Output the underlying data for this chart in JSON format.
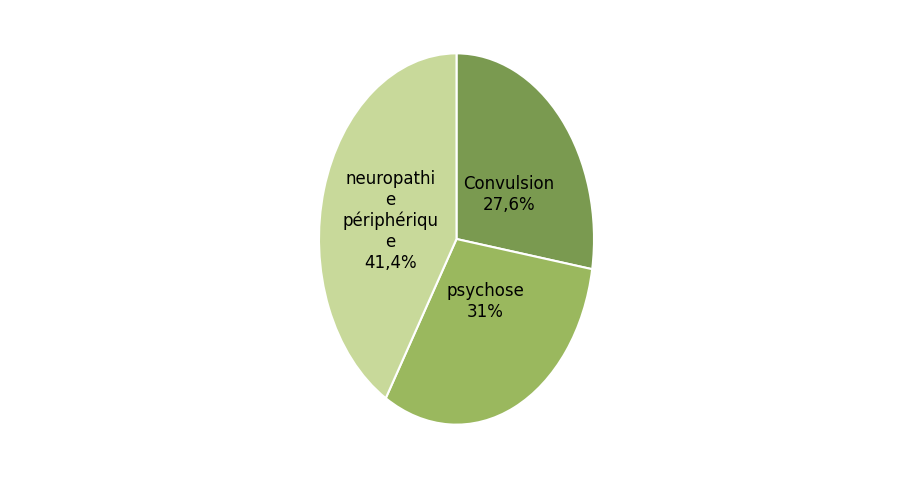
{
  "labels": [
    "Convulsion\n27,6%",
    "psychose\n31%",
    "neuropathi\ne\npériphériqu\ne\n41,4%"
  ],
  "values": [
    27.6,
    31.0,
    41.4
  ],
  "colors": [
    "#7a9a50",
    "#9ab85e",
    "#c8d99a"
  ],
  "startangle": 90,
  "label_fontsize": 12,
  "background_color": "#ffffff",
  "figsize": [
    9.13,
    4.78
  ],
  "dpi": 100
}
